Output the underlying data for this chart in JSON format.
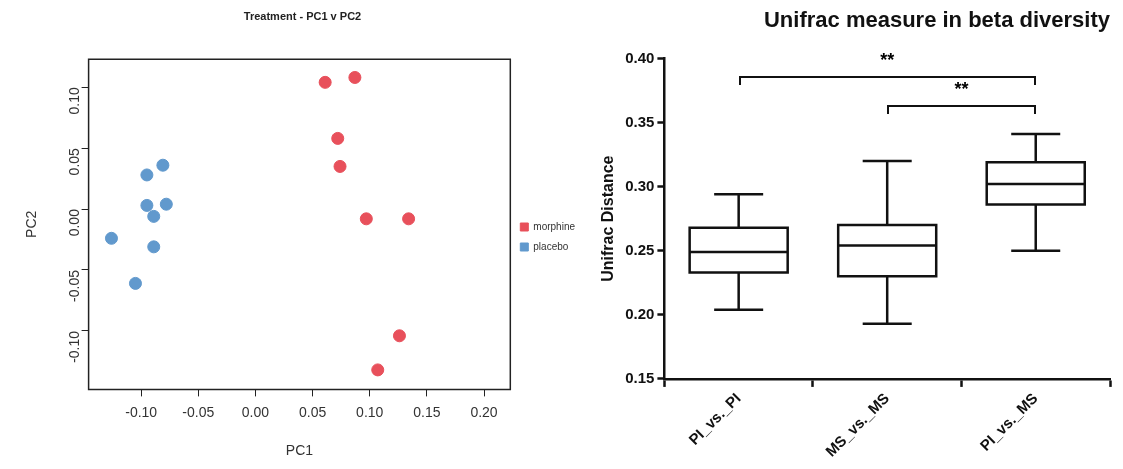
{
  "chart_data": [
    {
      "type": "scatter",
      "title": "Treatment - PC1 v PC2",
      "xlabel": "PC1",
      "ylabel": "PC2",
      "series": [
        {
          "name": "morphine",
          "color": "#e8505b",
          "x": [
            0.061,
            0.087,
            0.072,
            0.074,
            0.097,
            0.134,
            0.126,
            0.107
          ],
          "values": [
            0.104,
            0.108,
            0.058,
            0.035,
            -0.008,
            -0.008,
            -0.104,
            -0.132
          ]
        },
        {
          "name": "placebo",
          "color": "#6199cd",
          "x": [
            -0.081,
            -0.095,
            -0.095,
            -0.078,
            -0.089,
            -0.089,
            -0.126,
            -0.105
          ],
          "values": [
            0.036,
            0.028,
            0.003,
            0.004,
            -0.006,
            -0.031,
            -0.024,
            -0.061
          ]
        }
      ],
      "xlim": [
        -0.146,
        0.223
      ],
      "ylim": [
        -0.148,
        0.123
      ],
      "xticks": [
        {
          "value": -0.1,
          "label": "-0.10"
        },
        {
          "value": -0.05,
          "label": "-0.05"
        },
        {
          "value": 0,
          "label": "0.00"
        },
        {
          "value": 0.05,
          "label": "0.05"
        },
        {
          "value": 0.1,
          "label": "0.10"
        },
        {
          "value": 0.15,
          "label": "0.15"
        },
        {
          "value": 0.2,
          "label": "0.20"
        }
      ],
      "yticks": [
        {
          "value": -0.1,
          "label": "-0.10"
        },
        {
          "value": -0.05,
          "label": "-0.05"
        },
        {
          "value": 0,
          "label": "0.00"
        },
        {
          "value": 0.05,
          "label": "0.05"
        },
        {
          "value": 0.1,
          "label": "0.10"
        }
      ],
      "legend": "right",
      "marker": "circle",
      "grid": false
    },
    {
      "type": "box",
      "title": "Unifrac measure in beta diversity",
      "ylabel": "Unifrac Distance",
      "categories": [
        "PI_vs._PI",
        "MS_vs._MS",
        "PI_vs._MS"
      ],
      "boxes": [
        {
          "low": 0.204,
          "q1": 0.233,
          "median": 0.249,
          "q3": 0.268,
          "high": 0.294
        },
        {
          "low": 0.193,
          "q1": 0.23,
          "median": 0.254,
          "q3": 0.27,
          "high": 0.32
        },
        {
          "low": 0.25,
          "q1": 0.286,
          "median": 0.302,
          "q3": 0.319,
          "high": 0.341
        }
      ],
      "ylim": [
        0.15,
        0.4
      ],
      "yticks": [
        {
          "value": 0.15,
          "label": "0.15"
        },
        {
          "value": 0.2,
          "label": "0.20"
        },
        {
          "value": 0.25,
          "label": "0.25"
        },
        {
          "value": 0.3,
          "label": "0.30"
        },
        {
          "value": 0.35,
          "label": "0.35"
        },
        {
          "value": 0.4,
          "label": "0.40"
        }
      ],
      "annotations": [
        "**",
        "**"
      ],
      "grid": false
    }
  ]
}
